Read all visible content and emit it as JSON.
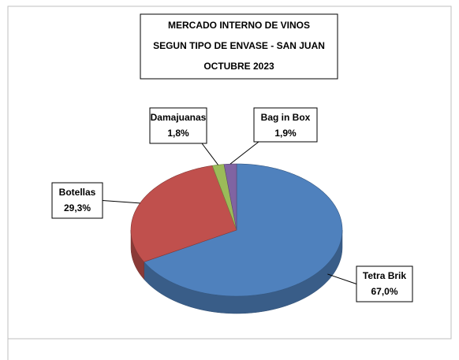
{
  "chart_data": {
    "type": "pie",
    "title": [
      "MERCADO INTERNO DE VINOS",
      "SEGUN TIPO DE ENVASE - SAN JUAN",
      "OCTUBRE 2023"
    ],
    "categories": [
      "Tetra Brik",
      "Botellas",
      "Damajuanas",
      "Bag in Box"
    ],
    "values": [
      67.0,
      29.3,
      1.8,
      1.9
    ],
    "value_labels": [
      "67,0%",
      "29,3%",
      "1,8%",
      "1,9%"
    ],
    "colors": [
      "#4f81bd",
      "#c0504d",
      "#9bbb59",
      "#8064a2"
    ]
  }
}
